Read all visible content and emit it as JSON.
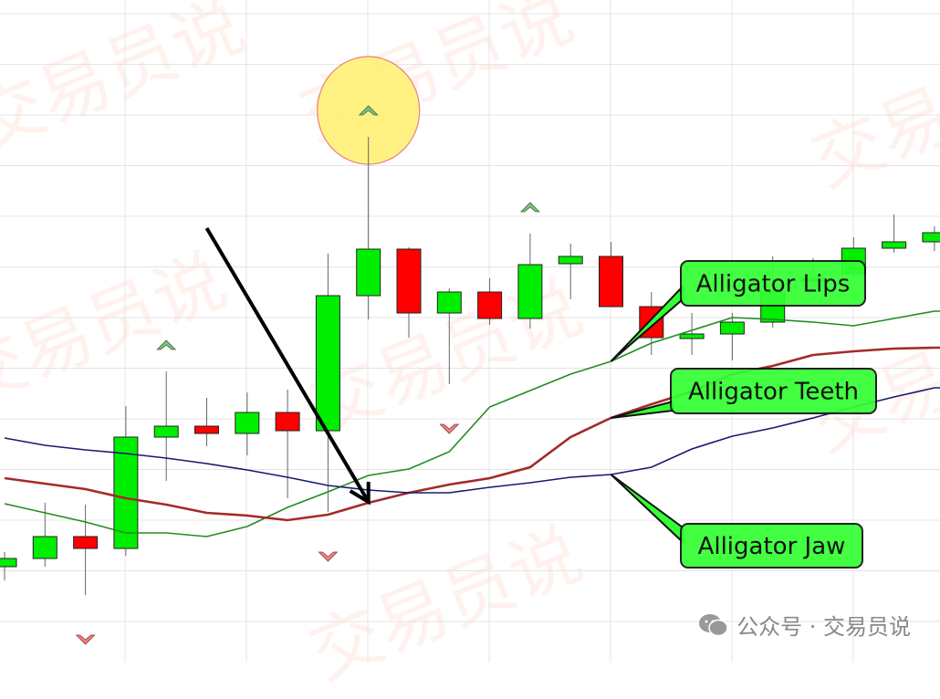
{
  "watermark": "交易员说",
  "footer": {
    "text": "公众号 · 交易员说",
    "icon": "wechat-icon"
  },
  "colors": {
    "bull": "#00ee00",
    "bear": "#ff0000",
    "lips": "#228b22",
    "teeth": "#a52a2a",
    "jaw": "#191970",
    "label_bg": "#33ff33",
    "highlight": "#fff176",
    "fractal_up": "#7fbf7f",
    "fractal_down": "#f08080"
  },
  "chart_data": {
    "type": "candlestick",
    "title": "",
    "xlabel": "",
    "ylabel": "",
    "ylim": [
      0,
      72.6
    ],
    "grid": true,
    "candles": [
      [
        10.5,
        12.1,
        9.0,
        11.4
      ],
      [
        11.4,
        17.5,
        10.5,
        13.8
      ],
      [
        13.8,
        17.3,
        7.4,
        12.5
      ],
      [
        12.5,
        28.1,
        11.7,
        24.7
      ],
      [
        24.7,
        31.9,
        19.9,
        25.9
      ],
      [
        25.9,
        29.0,
        23.7,
        25.1
      ],
      [
        25.1,
        29.6,
        22.7,
        27.4
      ],
      [
        27.4,
        29.9,
        18.0,
        25.4
      ],
      [
        25.4,
        44.8,
        16.5,
        40.2
      ],
      [
        40.2,
        57.6,
        37.6,
        45.3
      ],
      [
        45.3,
        45.5,
        35.6,
        38.3
      ],
      [
        38.3,
        41.0,
        30.5,
        40.6
      ],
      [
        40.6,
        42.1,
        37.0,
        37.7
      ],
      [
        37.7,
        47.0,
        36.6,
        43.6
      ],
      [
        43.7,
        45.9,
        39.8,
        44.5
      ],
      [
        44.5,
        46.1,
        39.0,
        39.0
      ],
      [
        39.0,
        40.6,
        33.7,
        35.6
      ],
      [
        35.5,
        38.3,
        33.7,
        36.0
      ],
      [
        36.0,
        38.3,
        33.1,
        37.3
      ],
      [
        37.3,
        44.5,
        36.7,
        40.6
      ],
      [
        41.8,
        44.3,
        40.6,
        42.1
      ],
      [
        42.6,
        46.6,
        42.1,
        45.4
      ],
      [
        45.4,
        49.1,
        44.9,
        46.1
      ],
      [
        46.1,
        47.8,
        45.1,
        47.1
      ]
    ],
    "series": [
      {
        "name": "Alligator Lips",
        "color": "#228b22",
        "values": [
          17.4,
          16.4,
          15.4,
          14.2,
          14.2,
          13.8,
          14.9,
          17.0,
          18.7,
          20.5,
          21.2,
          23.1,
          28.0,
          29.8,
          31.6,
          33.0,
          35.0,
          36.4,
          37.8,
          37.6,
          37.3,
          36.9,
          37.7,
          38.5
        ]
      },
      {
        "name": "Alligator Teeth",
        "color": "#a52a2a",
        "values": [
          20.2,
          19.6,
          19.0,
          18.0,
          17.3,
          16.4,
          16.1,
          15.6,
          16.2,
          17.5,
          18.6,
          19.5,
          20.2,
          21.4,
          24.7,
          26.8,
          28.3,
          29.7,
          31.6,
          32.5,
          33.7,
          34.1,
          34.4,
          34.5
        ]
      },
      {
        "name": "Alligator Jaw",
        "color": "#191970",
        "values": [
          24.6,
          23.8,
          23.3,
          22.9,
          22.4,
          21.8,
          21.1,
          20.3,
          19.4,
          18.9,
          18.6,
          18.6,
          19.2,
          19.7,
          20.3,
          20.6,
          21.4,
          23.4,
          24.8,
          25.7,
          26.8,
          28.0,
          29.1,
          30.1
        ]
      }
    ],
    "fractals_up": [
      4,
      9,
      13
    ],
    "fractals_down": [
      2,
      8,
      11
    ],
    "highlighted_fractal": 9,
    "annotations": [
      {
        "text": "Alligator Lips",
        "series": 0,
        "point": 15
      },
      {
        "text": "Alligator Teeth",
        "series": 1,
        "point": 15
      },
      {
        "text": "Alligator Jaw",
        "series": 2,
        "point": 15
      }
    ],
    "arrow": {
      "from": [
        5,
        47.6
      ],
      "to": [
        9,
        17.6
      ]
    }
  }
}
